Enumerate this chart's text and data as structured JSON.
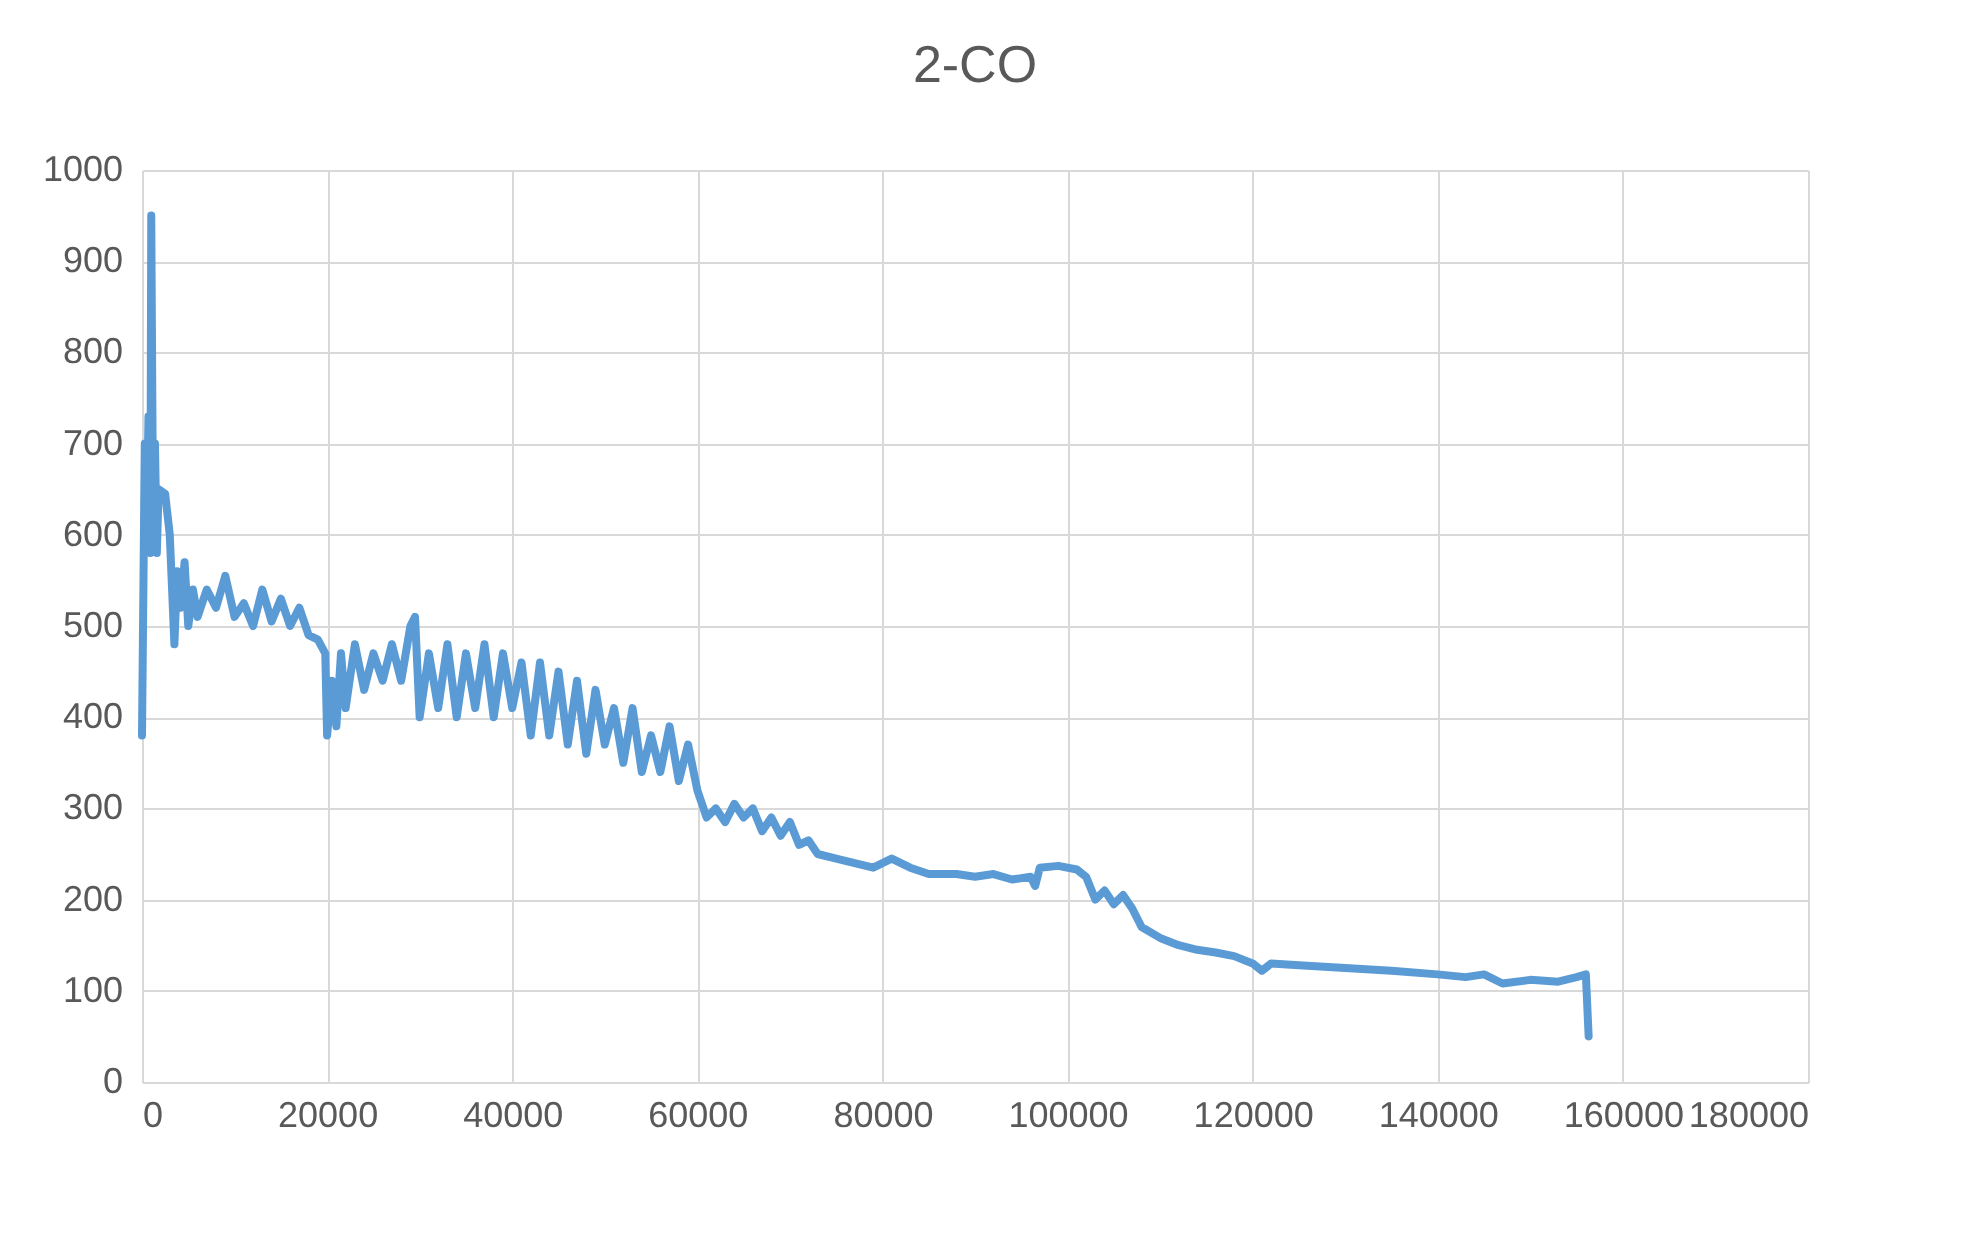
{
  "chart_data": {
    "type": "line",
    "title": "2-CO",
    "x": [
      0,
      300,
      500,
      700,
      900,
      1000,
      1200,
      1400,
      1600,
      1800,
      2500,
      3000,
      3500,
      3800,
      4200,
      4600,
      5000,
      5500,
      6000,
      7000,
      8000,
      9000,
      10000,
      11000,
      12000,
      13000,
      14000,
      15000,
      16000,
      17000,
      18000,
      19000,
      19800,
      20000,
      20500,
      21000,
      21500,
      22000,
      23000,
      24000,
      25000,
      26000,
      27000,
      28000,
      29000,
      29500,
      30000,
      31000,
      32000,
      33000,
      34000,
      35000,
      36000,
      37000,
      38000,
      39000,
      40000,
      41000,
      42000,
      43000,
      44000,
      45000,
      46000,
      47000,
      48000,
      49000,
      50000,
      51000,
      52000,
      53000,
      54000,
      55000,
      56000,
      57000,
      58000,
      59000,
      60000,
      61000,
      62000,
      63000,
      64000,
      65000,
      66000,
      67000,
      68000,
      69000,
      70000,
      71000,
      72000,
      73000,
      75000,
      77000,
      79000,
      81000,
      83000,
      85000,
      88000,
      90000,
      92000,
      94000,
      96000,
      96500,
      97000,
      99000,
      101000,
      102000,
      103000,
      104000,
      105000,
      106000,
      107000,
      108000,
      110000,
      112000,
      114000,
      116000,
      118000,
      120000,
      121000,
      122000,
      125000,
      130000,
      135000,
      140000,
      143000,
      145000,
      147000,
      150000,
      153000,
      155000,
      156000,
      156300
    ],
    "series": [
      {
        "color": "#5b9bd5",
        "values": [
          380,
          700,
          600,
          730,
          580,
          950,
          600,
          700,
          580,
          650,
          645,
          600,
          480,
          560,
          520,
          570,
          500,
          540,
          510,
          540,
          520,
          555,
          510,
          525,
          500,
          540,
          505,
          530,
          500,
          520,
          490,
          485,
          470,
          380,
          440,
          390,
          470,
          410,
          480,
          430,
          470,
          440,
          480,
          440,
          500,
          510,
          400,
          470,
          410,
          480,
          400,
          470,
          410,
          480,
          400,
          470,
          410,
          460,
          380,
          460,
          380,
          450,
          370,
          440,
          360,
          430,
          370,
          410,
          350,
          410,
          340,
          380,
          340,
          390,
          330,
          370,
          320,
          290,
          300,
          285,
          305,
          290,
          300,
          275,
          290,
          270,
          285,
          260,
          265,
          250,
          245,
          240,
          235,
          245,
          235,
          228,
          228,
          225,
          228,
          222,
          225,
          215,
          235,
          237,
          233,
          225,
          200,
          210,
          195,
          205,
          190,
          170,
          158,
          150,
          145,
          142,
          138,
          130,
          122,
          130,
          128,
          125,
          122,
          118,
          115,
          118,
          108,
          112,
          110,
          115,
          118,
          50
        ]
      }
    ],
    "xlim": [
      0,
      180000
    ],
    "xticks": [
      0,
      20000,
      40000,
      60000,
      80000,
      100000,
      120000,
      140000,
      160000,
      180000
    ],
    "ylim": [
      0,
      1000
    ],
    "yticks": [
      0,
      100,
      200,
      300,
      400,
      500,
      600,
      700,
      800,
      900,
      1000
    ],
    "grid": true,
    "legend": false,
    "marker": "none",
    "line_style": "solid"
  }
}
